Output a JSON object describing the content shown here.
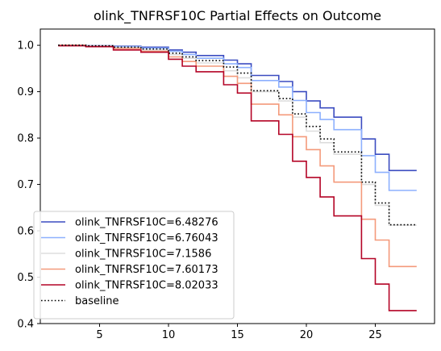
{
  "chart_data": {
    "type": "line",
    "step": true,
    "title": "olink_TNFRSF10C Partial Effects on Outcome",
    "xlabel": "",
    "ylabel": "",
    "xlim": [
      0.7,
      29.3
    ],
    "ylim": [
      0.4,
      1.035
    ],
    "xticks": [
      5,
      10,
      15,
      20,
      25
    ],
    "yticks": [
      0.4,
      0.5,
      0.6,
      0.7,
      0.8,
      0.9,
      1.0
    ],
    "xtick_labels": [
      "5",
      "10",
      "15",
      "20",
      "25"
    ],
    "ytick_labels": [
      "0.4",
      "0.5",
      "0.6",
      "0.7",
      "0.8",
      "0.9",
      "1.0"
    ],
    "grid": false,
    "legend_position": "lower-left",
    "series": [
      {
        "name": "olink_TNFRSF10C=6.48276",
        "color": "#3b4cc0",
        "dash": "solid",
        "x": [
          2,
          4,
          6,
          8,
          10,
          11,
          12,
          14,
          15,
          16,
          18,
          19,
          20,
          21,
          22,
          24,
          25,
          26,
          28
        ],
        "y": [
          1.0,
          0.999,
          0.998,
          0.996,
          0.99,
          0.985,
          0.978,
          0.968,
          0.96,
          0.935,
          0.922,
          0.9,
          0.88,
          0.865,
          0.845,
          0.798,
          0.765,
          0.73,
          0.73
        ]
      },
      {
        "name": "olink_TNFRSF10C=6.76043",
        "color": "#8db0fe",
        "dash": "solid",
        "x": [
          2,
          4,
          6,
          8,
          10,
          11,
          12,
          14,
          15,
          16,
          18,
          19,
          20,
          21,
          22,
          24,
          25,
          26,
          28
        ],
        "y": [
          1.0,
          0.999,
          0.997,
          0.994,
          0.987,
          0.98,
          0.972,
          0.96,
          0.952,
          0.924,
          0.91,
          0.881,
          0.855,
          0.84,
          0.818,
          0.762,
          0.726,
          0.687,
          0.687
        ]
      },
      {
        "name": "olink_TNFRSF10C=7.1586",
        "color": "#dddddd",
        "dash": "solid",
        "x": [
          2,
          4,
          6,
          8,
          10,
          11,
          12,
          14,
          15,
          16,
          18,
          19,
          20,
          21,
          22,
          24,
          25,
          26,
          28
        ],
        "y": [
          1.0,
          0.998,
          0.995,
          0.99,
          0.98,
          0.972,
          0.962,
          0.945,
          0.93,
          0.9,
          0.88,
          0.845,
          0.815,
          0.79,
          0.765,
          0.7,
          0.655,
          0.612,
          0.612
        ]
      },
      {
        "name": "olink_TNFRSF10C=7.60173",
        "color": "#f49a7b",
        "dash": "solid",
        "x": [
          2,
          4,
          6,
          8,
          10,
          11,
          12,
          14,
          15,
          16,
          18,
          19,
          20,
          21,
          22,
          24,
          25,
          26,
          28
        ],
        "y": [
          1.0,
          0.998,
          0.993,
          0.987,
          0.975,
          0.965,
          0.955,
          0.933,
          0.918,
          0.873,
          0.85,
          0.803,
          0.775,
          0.74,
          0.705,
          0.625,
          0.58,
          0.523,
          0.523
        ]
      },
      {
        "name": "olink_TNFRSF10C=8.02033",
        "color": "#b40426",
        "dash": "solid",
        "x": [
          2,
          4,
          6,
          8,
          10,
          11,
          12,
          14,
          15,
          16,
          18,
          19,
          20,
          21,
          22,
          24,
          25,
          26,
          28
        ],
        "y": [
          0.999,
          0.997,
          0.99,
          0.985,
          0.97,
          0.955,
          0.943,
          0.915,
          0.897,
          0.837,
          0.808,
          0.75,
          0.715,
          0.673,
          0.632,
          0.54,
          0.485,
          0.428,
          0.428
        ]
      },
      {
        "name": "baseline",
        "color": "#000000",
        "dash": "dotted",
        "x": [
          2,
          4,
          6,
          8,
          10,
          11,
          12,
          14,
          15,
          16,
          18,
          19,
          20,
          21,
          22,
          24,
          25,
          26,
          28
        ],
        "y": [
          1.0,
          0.999,
          0.996,
          0.992,
          0.983,
          0.975,
          0.967,
          0.953,
          0.94,
          0.902,
          0.885,
          0.852,
          0.825,
          0.798,
          0.77,
          0.705,
          0.66,
          0.613,
          0.613
        ]
      }
    ]
  }
}
